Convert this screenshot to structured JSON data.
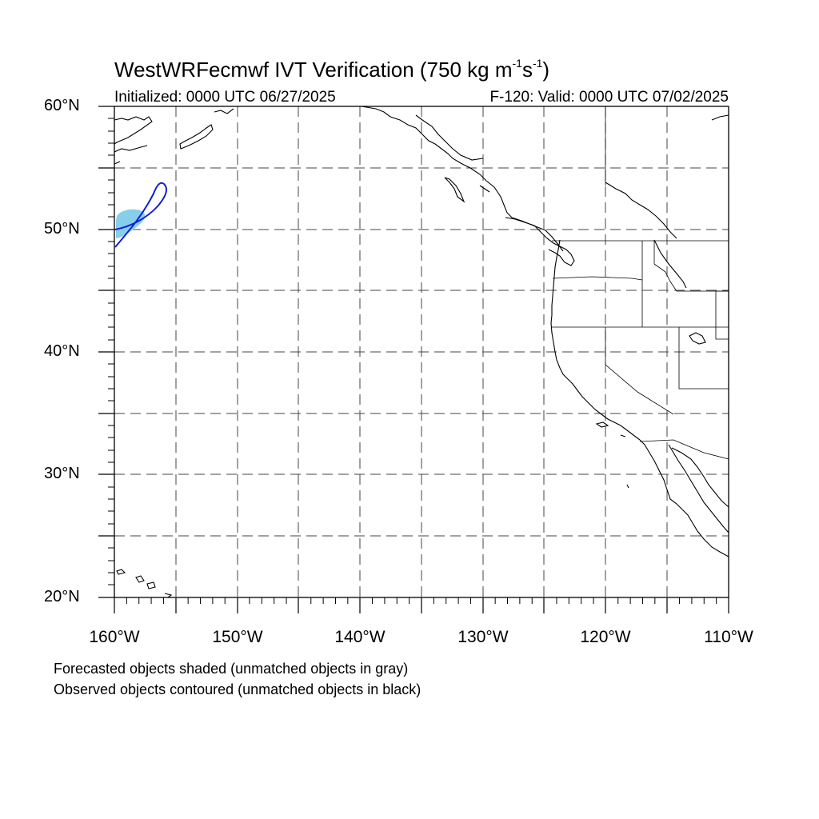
{
  "title": {
    "main": "WestWRFecmwf IVT Verification (750 kg m",
    "exp1": "-1",
    "mid": "s",
    "exp2": "-1",
    "end": ")"
  },
  "subtitle_left": "Initialized: 0000 UTC 06/27/2025",
  "subtitle_right": "F-120: Valid: 0000 UTC 07/02/2025",
  "lat_labels": [
    "60°N",
    "50°N",
    "40°N",
    "30°N",
    "20°N"
  ],
  "lon_labels": [
    "160°W",
    "150°W",
    "140°W",
    "130°W",
    "120°W",
    "110°W"
  ],
  "footnotes": [
    "Forecasted objects shaded (unmatched objects in gray)",
    "Observed objects contoured (unmatched objects in black)"
  ],
  "colors": {
    "forecast_fill": "#87ceeb",
    "observed_contour": "#1020d0",
    "coast": "#000000",
    "grid": "#444444"
  }
}
